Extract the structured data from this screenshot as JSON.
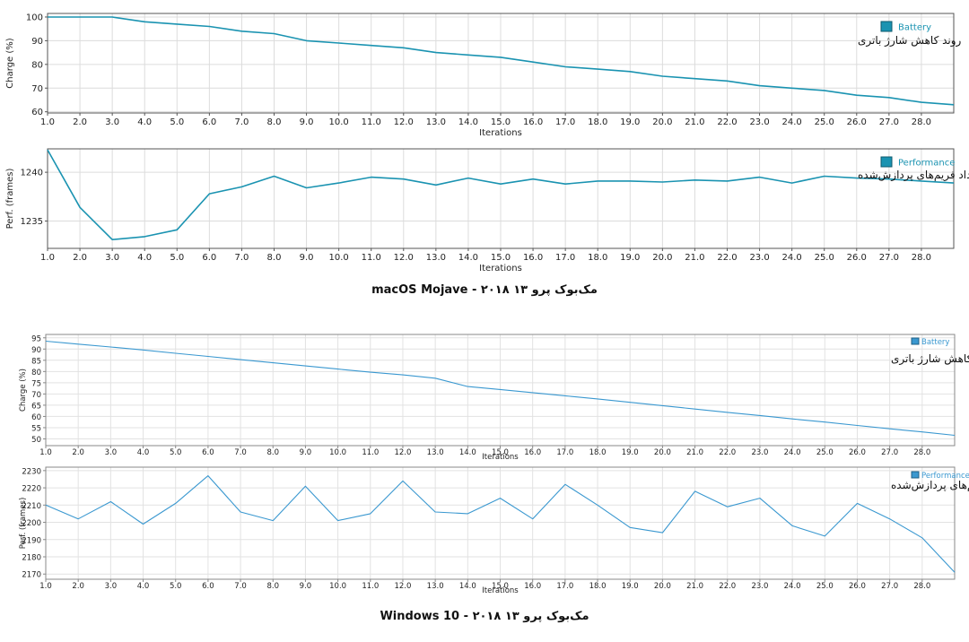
{
  "captions": {
    "mac": "macOS Mojave - مک‌بوک پرو ۱۳ ۲۰۱۸",
    "win": "Windows 10 - مک‌بوک پرو ۱۳ ۲۰۱۸"
  },
  "chart_data": [
    {
      "id": "mac-battery",
      "type": "line",
      "title": "",
      "xlabel": "Iterations",
      "ylabel": "Charge (%)",
      "annotation": "روند کاهش شارژ باتری",
      "legend": "Battery",
      "legend_position": "top-right",
      "grid": true,
      "color": "#1a93b1",
      "xlim": [
        1,
        29
      ],
      "ylim": [
        59.5,
        101.5
      ],
      "xticks": [
        "1.0",
        "2.0",
        "3.0",
        "4.0",
        "5.0",
        "6.0",
        "7.0",
        "8.0",
        "9.0",
        "10.0",
        "11.0",
        "12.0",
        "13.0",
        "14.0",
        "15.0",
        "16.0",
        "17.0",
        "18.0",
        "19.0",
        "20.0",
        "21.0",
        "22.0",
        "23.0",
        "24.0",
        "25.0",
        "26.0",
        "27.0",
        "28.0"
      ],
      "yticks": [
        60,
        70,
        80,
        90,
        100
      ],
      "series": [
        {
          "x": [
            1,
            2,
            3,
            4,
            5,
            6,
            7,
            8,
            9,
            10,
            11,
            12,
            13,
            14,
            15,
            16,
            17,
            18,
            19,
            20,
            21,
            22,
            23,
            24,
            25,
            26,
            27,
            28,
            29
          ],
          "y": [
            100,
            100,
            100,
            98,
            97,
            96,
            94,
            93,
            90,
            89,
            88,
            87,
            85,
            84,
            83,
            81,
            79,
            78,
            77,
            75,
            74,
            73,
            71,
            70,
            69,
            67,
            66,
            64,
            63
          ]
        }
      ]
    },
    {
      "id": "mac-perf",
      "type": "line",
      "title": "",
      "xlabel": "Iterations",
      "ylabel": "Perf. (frames)",
      "annotation": "روند افت تعداد فریم‌های پردازش‌شده",
      "legend": "Performance",
      "legend_position": "top-right",
      "grid": true,
      "color": "#1a93b1",
      "xlim": [
        1,
        29
      ],
      "ylim": [
        1232.2,
        1242.4
      ],
      "xticks": [
        "1.0",
        "2.0",
        "3.0",
        "4.0",
        "5.0",
        "6.0",
        "7.0",
        "8.0",
        "9.0",
        "10.0",
        "11.0",
        "12.0",
        "13.0",
        "14.0",
        "15.0",
        "16.0",
        "17.0",
        "18.0",
        "19.0",
        "20.0",
        "21.0",
        "22.0",
        "23.0",
        "24.0",
        "25.0",
        "26.0",
        "27.0",
        "28.0"
      ],
      "yticks": [
        1235,
        1240
      ],
      "series": [
        {
          "x": [
            1,
            2,
            3,
            4,
            5,
            6,
            7,
            8,
            9,
            10,
            11,
            12,
            13,
            14,
            15,
            16,
            17,
            18,
            19,
            20,
            21,
            22,
            23,
            24,
            25,
            26,
            27,
            28,
            29
          ],
          "y": [
            1242.3,
            1236.4,
            1233.1,
            1233.4,
            1234.1,
            1237.8,
            1238.5,
            1239.6,
            1238.4,
            1238.9,
            1239.5,
            1239.3,
            1238.7,
            1239.4,
            1238.8,
            1239.3,
            1238.8,
            1239.1,
            1239.1,
            1239.0,
            1239.2,
            1239.1,
            1239.5,
            1238.9,
            1239.6,
            1239.4,
            1239.3,
            1239.1,
            1238.9
          ]
        }
      ]
    },
    {
      "id": "win-battery",
      "type": "line",
      "title": "",
      "xlabel": "Iterations",
      "ylabel": "Charge (%)",
      "annotation": "روند کاهش شارژ باتری",
      "legend": "Battery",
      "legend_position": "top-right",
      "grid": true,
      "color": "#3a98d0",
      "xlim": [
        1,
        29
      ],
      "ylim": [
        47,
        96.5
      ],
      "xticks": [
        "1.0",
        "2.0",
        "3.0",
        "4.0",
        "5.0",
        "6.0",
        "7.0",
        "8.0",
        "9.0",
        "10.0",
        "11.0",
        "12.0",
        "13.0",
        "14.0",
        "15.0",
        "16.0",
        "17.0",
        "18.0",
        "19.0",
        "20.0",
        "21.0",
        "22.0",
        "23.0",
        "24.0",
        "25.0",
        "26.0",
        "27.0",
        "28.0"
      ],
      "yticks": [
        50,
        55,
        60,
        65,
        70,
        75,
        80,
        85,
        90,
        95
      ],
      "series": [
        {
          "x": [
            1,
            2,
            3,
            4,
            5,
            6,
            7,
            8,
            9,
            10,
            11,
            12,
            13,
            14,
            15,
            16,
            17,
            18,
            19,
            20,
            21,
            22,
            23,
            24,
            25,
            26,
            27,
            28,
            29
          ],
          "y": [
            93.5,
            92.2,
            90.9,
            89.6,
            88.1,
            86.7,
            85.3,
            83.9,
            82.5,
            81.1,
            79.7,
            78.5,
            77.0,
            73.3,
            72.0,
            70.6,
            69.2,
            67.8,
            66.3,
            64.8,
            63.3,
            61.8,
            60.4,
            58.9,
            57.5,
            56.0,
            54.5,
            53.1,
            51.6
          ]
        }
      ]
    },
    {
      "id": "win-perf",
      "type": "line",
      "title": "",
      "xlabel": "Iterations",
      "ylabel": "Perf. (frames)",
      "annotation": "روند افت تعداد فریم‌های پردازش‌شده",
      "legend": "Performance",
      "legend_position": "top-right",
      "grid": true,
      "color": "#3a98d0",
      "xlim": [
        1,
        29
      ],
      "ylim": [
        2167,
        2232
      ],
      "xticks": [
        "1.0",
        "2.0",
        "3.0",
        "4.0",
        "5.0",
        "6.0",
        "7.0",
        "8.0",
        "9.0",
        "10.0",
        "11.0",
        "12.0",
        "13.0",
        "14.0",
        "15.0",
        "16.0",
        "17.0",
        "18.0",
        "19.0",
        "20.0",
        "21.0",
        "22.0",
        "23.0",
        "24.0",
        "25.0",
        "26.0",
        "27.0",
        "28.0"
      ],
      "yticks": [
        2170,
        2180,
        2190,
        2200,
        2210,
        2220,
        2230
      ],
      "series": [
        {
          "x": [
            1,
            2,
            3,
            4,
            5,
            6,
            7,
            8,
            9,
            10,
            11,
            12,
            13,
            14,
            15,
            16,
            17,
            18,
            19,
            20,
            21,
            22,
            23,
            24,
            25,
            26,
            27,
            28,
            29
          ],
          "y": [
            2210,
            2202,
            2212,
            2199,
            2211,
            2227,
            2206,
            2201,
            2221,
            2201,
            2205,
            2224,
            2206,
            2205,
            2214,
            2202,
            2222,
            2210,
            2197,
            2194,
            2218,
            2209,
            2214,
            2198,
            2192,
            2211,
            2202,
            2191,
            2171
          ]
        }
      ]
    }
  ]
}
